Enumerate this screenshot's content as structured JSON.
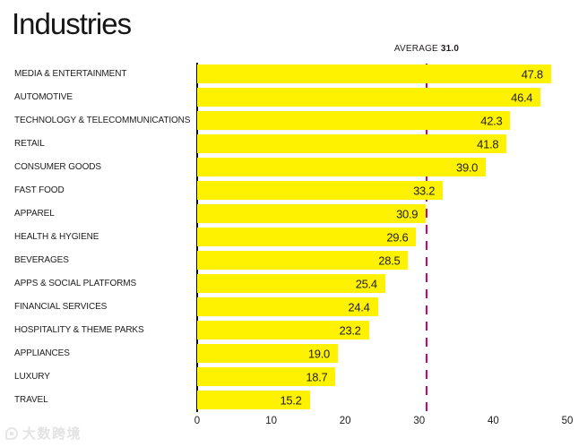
{
  "title": "Industries",
  "chart_data": {
    "type": "bar",
    "orientation": "horizontal",
    "title": "Industries",
    "categories": [
      "MEDIA & ENTERTAINMENT",
      "AUTOMOTIVE",
      "TECHNOLOGY & TELECOMMUNICATIONS",
      "RETAIL",
      "CONSUMER GOODS",
      "FAST FOOD",
      "APPAREL",
      "HEALTH & HYGIENE",
      "BEVERAGES",
      "APPS & SOCIAL PLATFORMS",
      "FINANCIAL SERVICES",
      "HOSPITALITY & THEME PARKS",
      "APPLIANCES",
      "LUXURY",
      "TRAVEL"
    ],
    "values": [
      47.8,
      46.4,
      42.3,
      41.8,
      39.0,
      33.2,
      30.9,
      29.6,
      28.5,
      25.4,
      24.4,
      23.2,
      19.0,
      18.7,
      15.2
    ],
    "value_labels": [
      "47.8",
      "46.4",
      "42.3",
      "41.8",
      "39.0",
      "33.2",
      "30.9",
      "29.6",
      "28.5",
      "25.4",
      "24.4",
      "23.2",
      "19.0",
      "18.7",
      "15.2"
    ],
    "average": 31.0,
    "average_label": "AVERAGE",
    "average_value_display": "31.0",
    "xlim": [
      0,
      50
    ],
    "x_ticks": [
      "0",
      "10",
      "20",
      "30",
      "40",
      "50"
    ],
    "bar_color": "#FFF200",
    "avg_line_color": "#D6006D",
    "grid": "off",
    "legend": "none"
  },
  "watermark": {
    "text": "大数跨境"
  }
}
